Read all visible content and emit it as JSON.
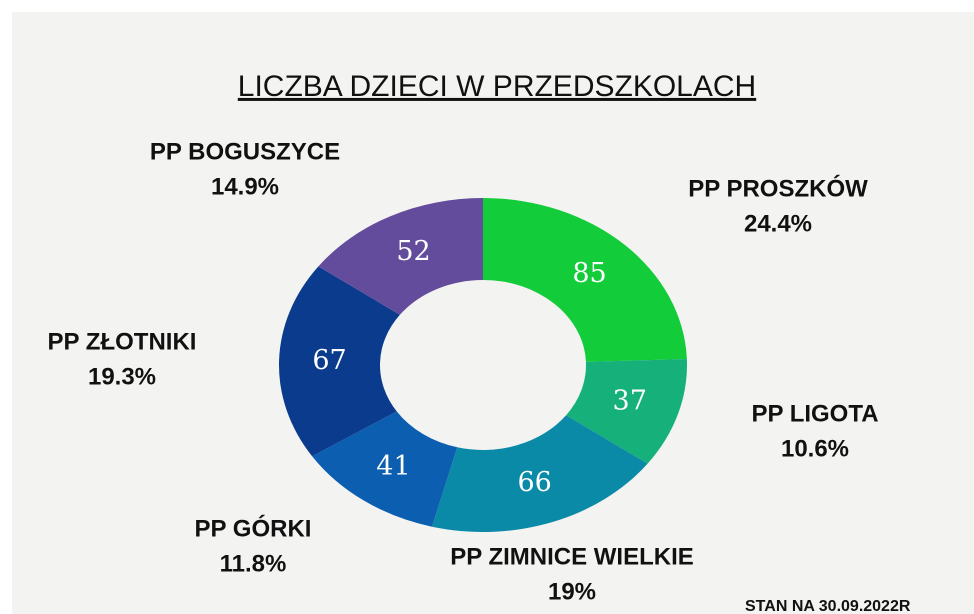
{
  "chart_data": {
    "type": "donut",
    "title": "LICZBA DZIECI W PRZEDSZKOLACH",
    "categories": [
      "PP PROSZKÓW",
      "PP LIGOTA",
      "PP ZIMNICE WIELKIE",
      "PP GÓRKI",
      "PP ZŁOTNIKI",
      "PP BOGUSZYCE"
    ],
    "values": [
      85,
      37,
      66,
      41,
      67,
      52
    ],
    "percent_labels": [
      "24.4%",
      "10.6%",
      "19%",
      "11.8%",
      "19.3%",
      "14.9%"
    ],
    "colors": [
      "#12cc3a",
      "#16b07a",
      "#0b8aa8",
      "#0c5fb0",
      "#0a3b8c",
      "#644c9c"
    ],
    "note": "STAN NA 30.09.2022R"
  }
}
